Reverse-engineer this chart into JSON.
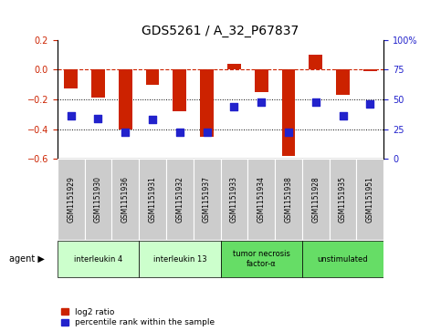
{
  "title": "GDS5261 / A_32_P67837",
  "samples": [
    "GSM1151929",
    "GSM1151930",
    "GSM1151936",
    "GSM1151931",
    "GSM1151932",
    "GSM1151937",
    "GSM1151933",
    "GSM1151934",
    "GSM1151938",
    "GSM1151928",
    "GSM1151935",
    "GSM1151951"
  ],
  "log2_ratio": [
    -0.13,
    -0.19,
    -0.4,
    -0.1,
    -0.28,
    -0.45,
    0.04,
    -0.15,
    -0.58,
    0.1,
    -0.17,
    -0.01
  ],
  "percentile": [
    36,
    34,
    22,
    33,
    22,
    22,
    44,
    48,
    22,
    48,
    36,
    46
  ],
  "bar_color": "#cc2200",
  "dot_color": "#2222cc",
  "ylim_left": [
    -0.6,
    0.2
  ],
  "ylim_right": [
    0,
    100
  ],
  "right_ticks": [
    0,
    25,
    50,
    75,
    100
  ],
  "right_tick_labels": [
    "0",
    "25",
    "50",
    "75",
    "100%"
  ],
  "left_ticks": [
    -0.6,
    -0.4,
    -0.2,
    0.0,
    0.2
  ],
  "hline_value": 0.0,
  "dotted_lines": [
    -0.2,
    -0.4
  ],
  "agent_groups": [
    {
      "label": "interleukin 4",
      "start": 0,
      "end": 2,
      "color": "#ccffcc"
    },
    {
      "label": "interleukin 13",
      "start": 3,
      "end": 5,
      "color": "#ccffcc"
    },
    {
      "label": "tumor necrosis\nfactor-α",
      "start": 6,
      "end": 8,
      "color": "#66dd66"
    },
    {
      "label": "unstimulated",
      "start": 9,
      "end": 11,
      "color": "#66dd66"
    }
  ],
  "agent_label": "agent",
  "legend_items": [
    {
      "color": "#cc2200",
      "label": "log2 ratio"
    },
    {
      "color": "#2222cc",
      "label": "percentile rank within the sample"
    }
  ],
  "bar_width": 0.5,
  "sample_box_color": "#cccccc",
  "tick_fontsize": 7,
  "label_fontsize": 7,
  "title_fontsize": 10
}
